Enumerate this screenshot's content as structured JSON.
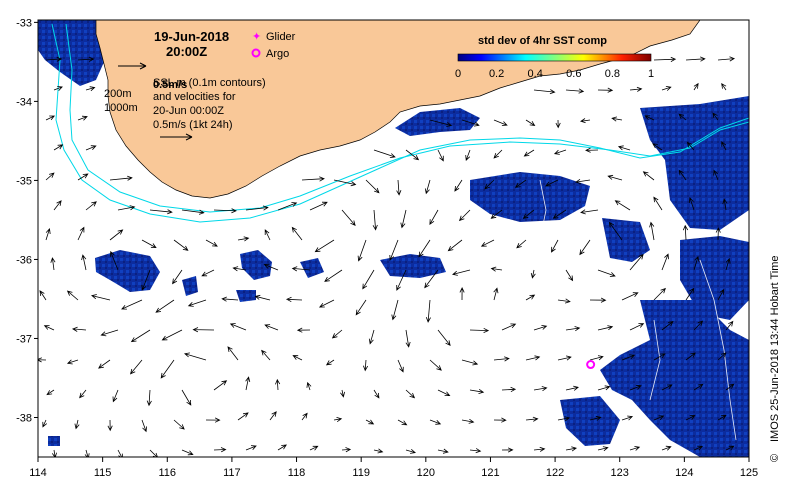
{
  "map": {
    "date_line1": "19-Jun-2018",
    "date_line2": "20:00Z",
    "velocity_overlay": "0.5m/s",
    "ssh_note_line1": "SSL m (0.1m contours)",
    "ssh_note_line2": "and velocities for",
    "ssh_note_line3": "20-Jun 00:00Z",
    "ssh_note_line4": "0.5m/s (1kt 24h)",
    "depth_200": "200m",
    "depth_1000": "1000m",
    "legend_glider": "Glider",
    "legend_argo": "Argo",
    "colorbar_title": "std dev of 4hr SST comp",
    "colorbar_ticks": [
      "0",
      "0.2",
      "0.4",
      "0.6",
      "0.8",
      "1"
    ],
    "credit": "IMOS 25-Jun-2018 13:44 Hobart Time",
    "copyright": "©",
    "lon_ticks": [
      "114",
      "115",
      "116",
      "117",
      "118",
      "119",
      "120",
      "121",
      "122",
      "123",
      "124",
      "125"
    ],
    "lat_ticks": [
      "-33",
      "-34",
      "-35",
      "-36",
      "-37",
      "-38"
    ],
    "argo_float": {
      "lon": 122.55,
      "lat": -37.33
    },
    "colors": {
      "land": "#f9c898",
      "contour": "#00d8e8",
      "data_low": "#0a2a9a",
      "glider": "#ff00ff",
      "argo": "#ff00ff"
    }
  }
}
